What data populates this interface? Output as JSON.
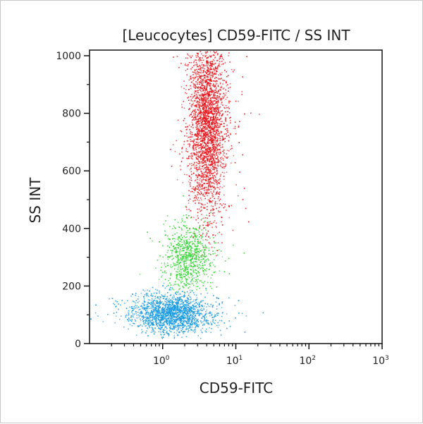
{
  "chart_data": {
    "type": "scatter",
    "title": "[Leucocytes] CD59-FITC / SS INT",
    "xlabel": "CD59-FITC",
    "ylabel": "SS INT",
    "x_scale": "log",
    "xlim": [
      0.1,
      1000
    ],
    "ylim": [
      0,
      1023
    ],
    "x_ticks": [
      {
        "value": 1,
        "base": "10",
        "exp": "0"
      },
      {
        "value": 10,
        "base": "10",
        "exp": "1"
      },
      {
        "value": 100,
        "base": "10",
        "exp": "2"
      },
      {
        "value": 1000,
        "base": "10",
        "exp": "3"
      }
    ],
    "y_ticks": [
      "0",
      "200",
      "400",
      "600",
      "800",
      "1000"
    ],
    "grid": false,
    "populations": [
      {
        "color": "#e8141a",
        "x_center": 4.0,
        "x_log_sd": 0.12,
        "y_center": 760,
        "y_sd": 160,
        "y_min": 300,
        "count": 3000
      },
      {
        "color": "#2ad12a",
        "x_center": 2.3,
        "x_log_sd": 0.15,
        "y_center": 300,
        "y_sd": 60,
        "y_min": 180,
        "count": 800
      },
      {
        "color": "#1a9be0",
        "x_center": 1.3,
        "x_log_sd": 0.25,
        "y_center": 105,
        "y_sd": 35,
        "y_min": 20,
        "count": 2000
      }
    ]
  }
}
